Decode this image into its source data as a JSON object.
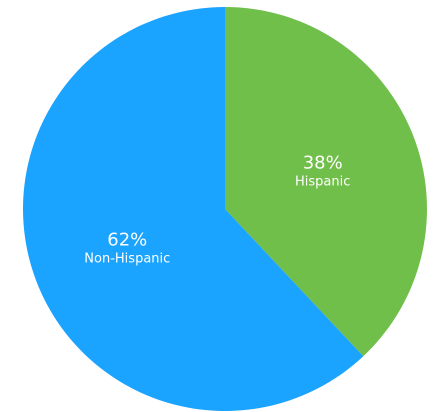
{
  "chart_data": {
    "type": "pie",
    "title": "",
    "start_angle_deg": 0,
    "direction": "clockwise",
    "slices": [
      {
        "label": "Hispanic",
        "value": 38,
        "value_label": "38%",
        "color": "#70bf4a"
      },
      {
        "label": "Non-Hispanic",
        "value": 62,
        "value_label": "62%",
        "color": "#1aa3ff"
      }
    ]
  }
}
